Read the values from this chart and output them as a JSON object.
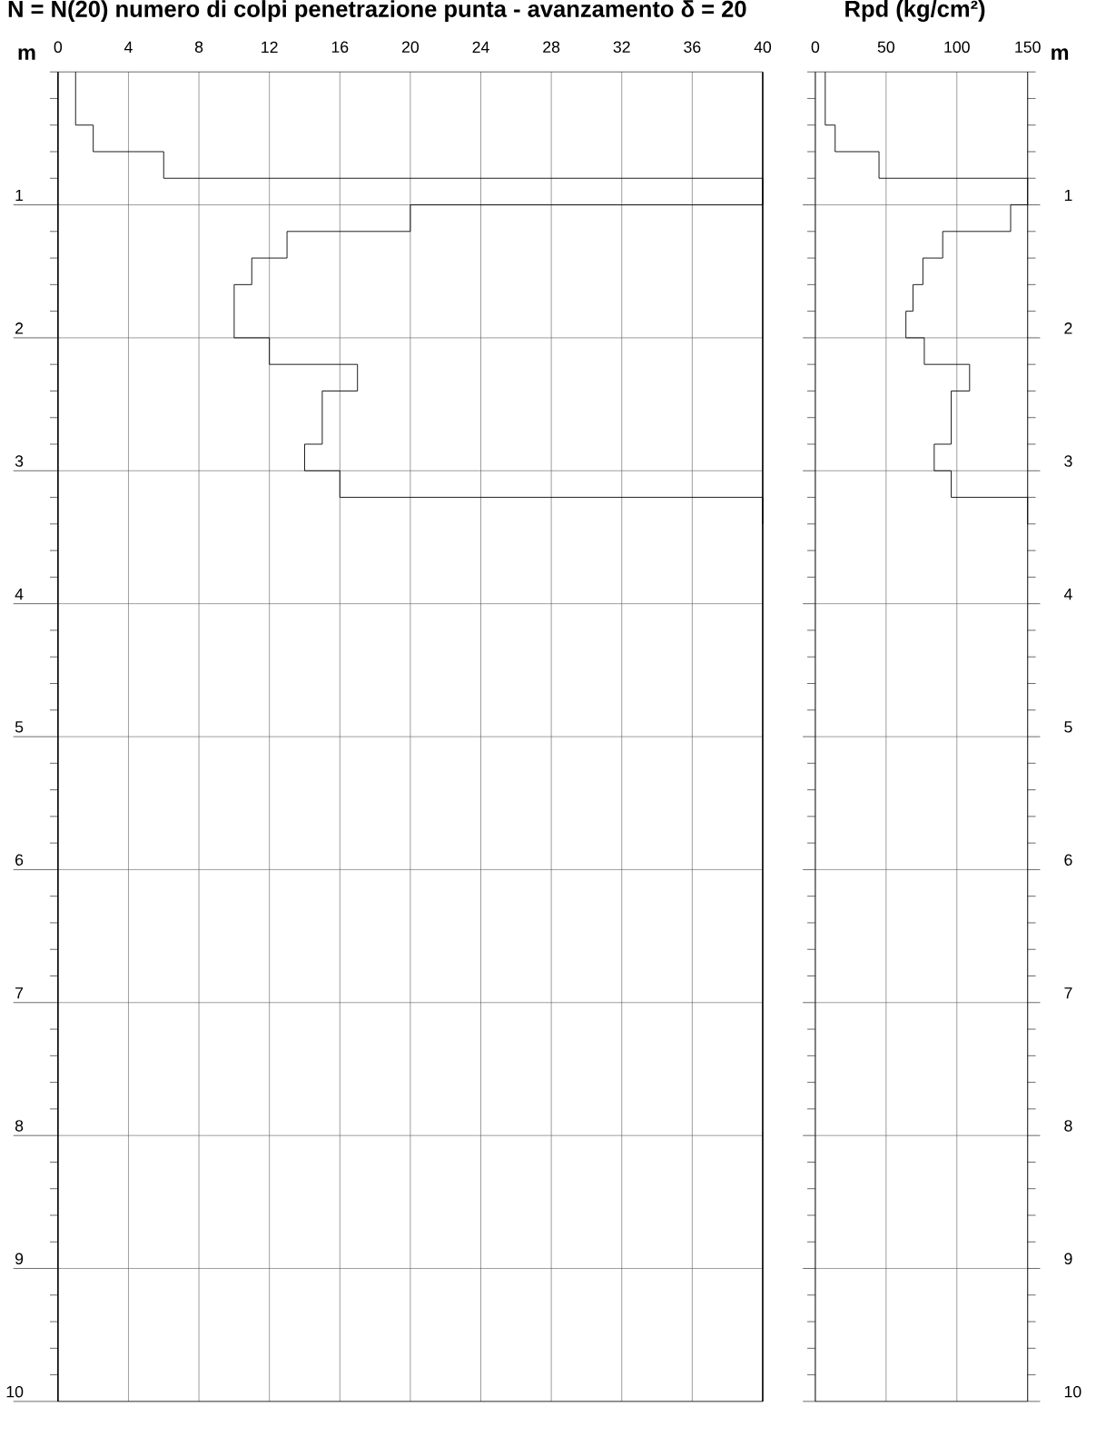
{
  "chart_data": [
    {
      "type": "step",
      "orientation": "horizontal",
      "title": "N = N(20) numero di colpi penetrazione punta - avanzamento δ = 20",
      "ylabel": "m",
      "xlim": [
        0,
        40
      ],
      "xticks": [
        0,
        4,
        8,
        12,
        16,
        20,
        24,
        28,
        32,
        36,
        40
      ],
      "ylim": [
        10,
        0
      ],
      "yticks": [
        {
          "value": 0,
          "label": null
        },
        {
          "value": 0.2,
          "label": null
        },
        {
          "value": 0.4,
          "label": null
        },
        {
          "value": 0.6,
          "label": null
        },
        {
          "value": 0.8,
          "label": null
        },
        1,
        {
          "value": 1.2,
          "label": null
        },
        {
          "value": 1.4,
          "label": null
        },
        {
          "value": 1.6,
          "label": null
        },
        {
          "value": 1.8,
          "label": null
        },
        2,
        {
          "value": 2.2,
          "label": null
        },
        {
          "value": 2.4,
          "label": null
        },
        {
          "value": 2.6,
          "label": null
        },
        {
          "value": 2.8,
          "label": null
        },
        3,
        {
          "value": 3.2,
          "label": null
        },
        {
          "value": 3.4,
          "label": null
        },
        {
          "value": 3.6,
          "label": null
        },
        {
          "value": 3.8,
          "label": null
        },
        4,
        {
          "value": 4.2,
          "label": null
        },
        {
          "value": 4.4,
          "label": null
        },
        {
          "value": 4.6,
          "label": null
        },
        {
          "value": 4.8,
          "label": null
        },
        5,
        {
          "value": 5.2,
          "label": null
        },
        {
          "value": 5.4,
          "label": null
        },
        {
          "value": 5.6,
          "label": null
        },
        {
          "value": 5.8,
          "label": null
        },
        6,
        {
          "value": 6.2,
          "label": null
        },
        {
          "value": 6.4,
          "label": null
        },
        {
          "value": 6.6,
          "label": null
        },
        {
          "value": 6.8,
          "label": null
        },
        7,
        {
          "value": 7.2,
          "label": null
        },
        {
          "value": 7.4,
          "label": null
        },
        {
          "value": 7.6,
          "label": null
        },
        {
          "value": 7.8,
          "label": null
        },
        8,
        {
          "value": 8.2,
          "label": null
        },
        {
          "value": 8.4,
          "label": null
        },
        {
          "value": 8.6,
          "label": null
        },
        {
          "value": 8.8,
          "label": null
        },
        9,
        {
          "value": 9.2,
          "label": null
        },
        {
          "value": 9.4,
          "label": null
        },
        {
          "value": 9.6,
          "label": null
        },
        {
          "value": 9.8,
          "label": null
        },
        10
      ],
      "grid": true,
      "series": [
        {
          "color": "#000000",
          "x": [
            0,
            0.2,
            0.4,
            0.6,
            0.8,
            1.0,
            1.2,
            1.4,
            1.6,
            1.8,
            2.0,
            2.2,
            2.4,
            2.6,
            2.8,
            3.0,
            3.2,
            3.4
          ],
          "values": [
            1,
            1,
            2,
            6,
            40,
            20,
            13,
            11,
            10,
            10,
            12,
            17,
            15,
            15,
            14,
            16,
            40,
            40
          ]
        }
      ]
    },
    {
      "type": "step",
      "orientation": "horizontal",
      "title": "Rpd (kg/cm²)",
      "ylabel": "m",
      "xlim": [
        0,
        150
      ],
      "xticks": [
        0,
        50,
        100,
        150
      ],
      "ylim": [
        10,
        0
      ],
      "yticks": [
        {
          "value": 0,
          "label": null
        },
        {
          "value": 0.2,
          "label": null
        },
        {
          "value": 0.4,
          "label": null
        },
        {
          "value": 0.6,
          "label": null
        },
        {
          "value": 0.8,
          "label": null
        },
        1,
        {
          "value": 1.2,
          "label": null
        },
        {
          "value": 1.4,
          "label": null
        },
        {
          "value": 1.6,
          "label": null
        },
        {
          "value": 1.8,
          "label": null
        },
        2,
        {
          "value": 2.2,
          "label": null
        },
        {
          "value": 2.4,
          "label": null
        },
        {
          "value": 2.6,
          "label": null
        },
        {
          "value": 2.8,
          "label": null
        },
        3,
        {
          "value": 3.2,
          "label": null
        },
        {
          "value": 3.4,
          "label": null
        },
        {
          "value": 3.6,
          "label": null
        },
        {
          "value": 3.8,
          "label": null
        },
        4,
        {
          "value": 4.2,
          "label": null
        },
        {
          "value": 4.4,
          "label": null
        },
        {
          "value": 4.6,
          "label": null
        },
        {
          "value": 4.8,
          "label": null
        },
        5,
        {
          "value": 5.2,
          "label": null
        },
        {
          "value": 5.4,
          "label": null
        },
        {
          "value": 5.6,
          "label": null
        },
        {
          "value": 5.8,
          "label": null
        },
        6,
        {
          "value": 6.2,
          "label": null
        },
        {
          "value": 6.4,
          "label": null
        },
        {
          "value": 6.6,
          "label": null
        },
        {
          "value": 6.8,
          "label": null
        },
        7,
        {
          "value": 7.2,
          "label": null
        },
        {
          "value": 7.4,
          "label": null
        },
        {
          "value": 7.6,
          "label": null
        },
        {
          "value": 7.8,
          "label": null
        },
        8,
        {
          "value": 8.2,
          "label": null
        },
        {
          "value": 8.4,
          "label": null
        },
        {
          "value": 8.6,
          "label": null
        },
        {
          "value": 8.8,
          "label": null
        },
        9,
        {
          "value": 9.2,
          "label": null
        },
        {
          "value": 9.4,
          "label": null
        },
        {
          "value": 9.6,
          "label": null
        },
        {
          "value": 9.8,
          "label": null
        },
        10
      ],
      "grid": true,
      "series": [
        {
          "color": "#000000",
          "x": [
            0,
            0.2,
            0.4,
            0.6,
            0.8,
            1.0,
            1.2,
            1.4,
            1.6,
            1.8,
            2.0,
            2.2,
            2.4,
            2.6,
            2.8,
            3.0,
            3.2,
            3.4
          ],
          "values": [
            7,
            7,
            14,
            45,
            150,
            138,
            90,
            76,
            69,
            64,
            77,
            109,
            96,
            96,
            84,
            96,
            150,
            150
          ]
        }
      ]
    }
  ]
}
